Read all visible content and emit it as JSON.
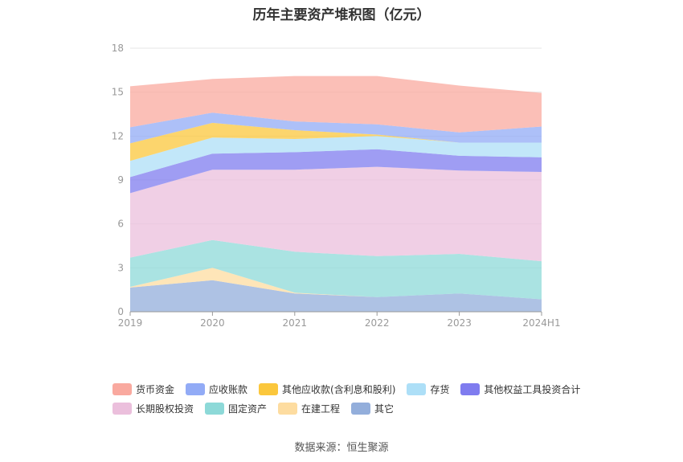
{
  "title": "历年主要资产堆积图（亿元）",
  "source": "数据来源：恒生聚源",
  "colors": {
    "货币资金": "#f9a99f",
    "应收账款": "#92abf6",
    "其他应收款(含利息和股利)": "#fbc73c",
    "存货": "#addff7",
    "其他权益工具投资合计": "#7f7cef",
    "长期股权投资": "#ebbfdc",
    "固定资产": "#8dd9d8",
    "在建工程": "#fddca0",
    "其它": "#93aedb"
  },
  "chart_data": {
    "type": "area",
    "stacked": true,
    "title": "历年主要资产堆积图（亿元）",
    "categories": [
      "2019",
      "2020",
      "2021",
      "2022",
      "2023",
      "2024H1"
    ],
    "ylim": [
      0,
      18
    ],
    "yticks": [
      "0",
      "3",
      "6",
      "9",
      "12",
      "15",
      "18"
    ],
    "grid": true,
    "legend_position": "bottom",
    "series": [
      {
        "name": "其它",
        "values": [
          1.65,
          2.15,
          1.25,
          1.0,
          1.25,
          0.85
        ]
      },
      {
        "name": "在建工程",
        "values": [
          0.05,
          0.85,
          0.05,
          0.0,
          0.0,
          0.0
        ]
      },
      {
        "name": "固定资产",
        "values": [
          2.0,
          1.9,
          2.8,
          2.8,
          2.7,
          2.6
        ]
      },
      {
        "name": "长期股权投资",
        "values": [
          4.4,
          4.8,
          5.6,
          6.1,
          5.7,
          6.1
        ]
      },
      {
        "name": "其他权益工具投资合计",
        "values": [
          1.1,
          1.1,
          1.2,
          1.2,
          1.0,
          1.0
        ]
      },
      {
        "name": "存货",
        "values": [
          1.1,
          1.1,
          0.9,
          0.9,
          0.9,
          1.0
        ]
      },
      {
        "name": "其他应收款(含利息和股利)",
        "values": [
          1.2,
          1.0,
          0.6,
          0.1,
          0.0,
          0.0
        ]
      },
      {
        "name": "应收账款",
        "values": [
          1.1,
          0.7,
          0.6,
          0.7,
          0.7,
          1.1
        ]
      },
      {
        "name": "货币资金",
        "values": [
          2.8,
          2.3,
          3.1,
          3.3,
          3.2,
          2.3
        ]
      }
    ]
  },
  "legend": {
    "row1": [
      "货币资金",
      "应收账款",
      "其他应收款(含利息和股利)",
      "存货",
      "其他权益工具投资合计"
    ],
    "row2": [
      "长期股权投资",
      "固定资产",
      "在建工程",
      "其它"
    ]
  }
}
